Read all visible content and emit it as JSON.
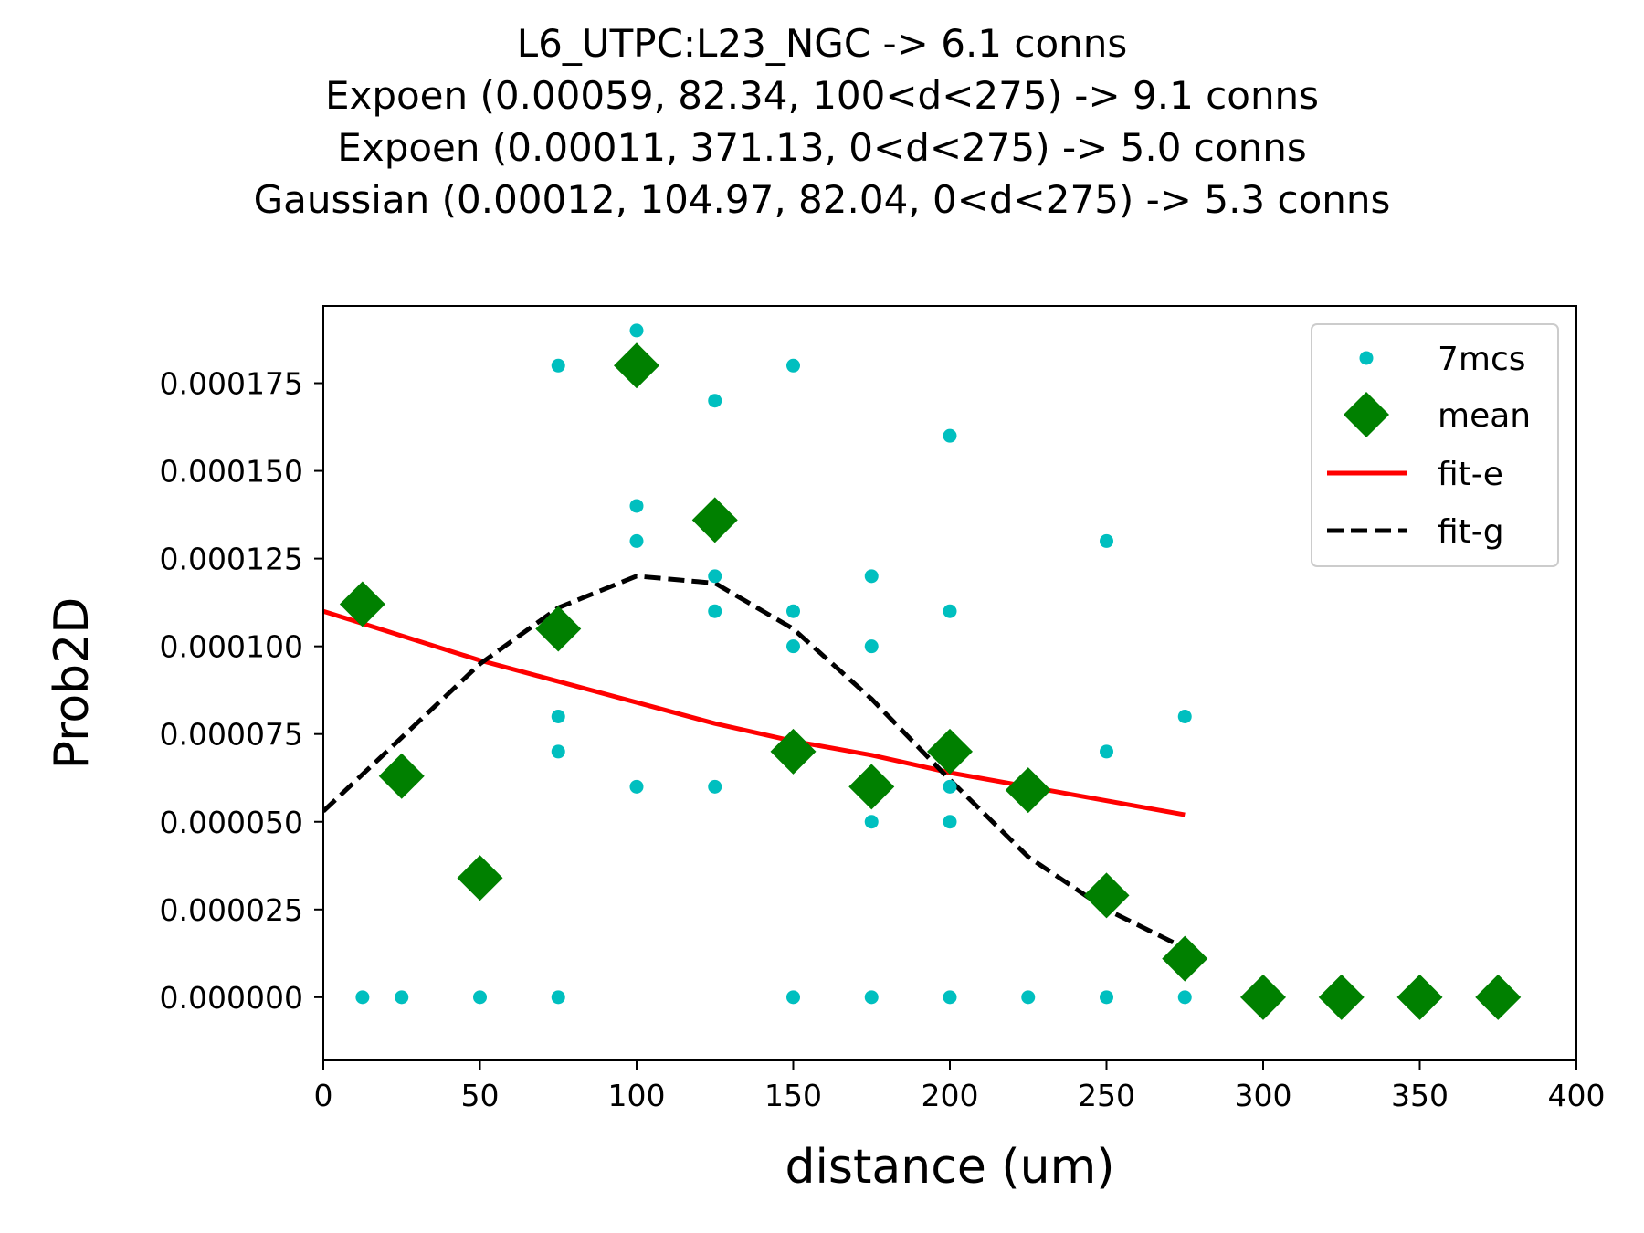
{
  "chart_data": {
    "type": "scatter",
    "title_lines": [
      "L6_UTPC:L23_NGC -> 6.1 conns",
      "Expoen (0.00059, 82.34, 100<d<275) -> 9.1 conns",
      "Expoen (0.00011, 371.13, 0<d<275) -> 5.0 conns",
      "Gaussian (0.00012, 104.97, 82.04, 0<d<275) -> 5.3 conns"
    ],
    "xlabel": "distance (um)",
    "ylabel": "Prob2D",
    "xlim": [
      0,
      400
    ],
    "ylim": [
      -1.8e-05,
      0.000197
    ],
    "xticks": [
      0,
      50,
      100,
      150,
      200,
      250,
      300,
      350,
      400
    ],
    "yticks": [
      0.0,
      2.5e-05,
      5e-05,
      7.5e-05,
      0.0001,
      0.000125,
      0.00015,
      0.000175
    ],
    "ytick_labels": [
      "0.000000",
      "0.000025",
      "0.000050",
      "0.000075",
      "0.000100",
      "0.000125",
      "0.000150",
      "0.000175"
    ],
    "grid": false,
    "legend_position": "top-right",
    "series": [
      {
        "name": "7mcs",
        "kind": "points",
        "marker": "circle",
        "color": "#00bfbf",
        "x": [
          12.5,
          25,
          50,
          75,
          75,
          75,
          75,
          100,
          100,
          100,
          100,
          125,
          125,
          125,
          125,
          150,
          150,
          150,
          150,
          175,
          175,
          175,
          175,
          200,
          200,
          200,
          200,
          200,
          225,
          250,
          250,
          250,
          275,
          275
        ],
        "y": [
          0,
          0,
          0,
          0.00018,
          8e-05,
          7e-05,
          0,
          0.00019,
          0.00014,
          0.00013,
          6e-05,
          0.00017,
          0.00012,
          0.00011,
          6e-05,
          0.00018,
          0.00011,
          0.0001,
          0,
          0.00012,
          0.0001,
          5e-05,
          0,
          0.00016,
          0.00011,
          6e-05,
          5e-05,
          0,
          0,
          0.00013,
          7e-05,
          0,
          8e-05,
          0
        ]
      },
      {
        "name": "mean",
        "kind": "points",
        "marker": "diamond",
        "color": "#008000",
        "x": [
          12.5,
          25,
          50,
          75,
          100,
          125,
          150,
          175,
          200,
          225,
          250,
          275,
          300,
          325,
          350,
          375
        ],
        "y": [
          0.000112,
          6.3e-05,
          3.4e-05,
          0.000105,
          0.00018,
          0.000136,
          7e-05,
          6e-05,
          7e-05,
          5.9e-05,
          2.9e-05,
          1.1e-05,
          0,
          0,
          0,
          0
        ]
      },
      {
        "name": "fit-e",
        "kind": "line",
        "style": "solid",
        "color": "#ff0000",
        "x": [
          0,
          25,
          50,
          75,
          100,
          125,
          150,
          175,
          200,
          225,
          250,
          275
        ],
        "y": [
          0.00011,
          0.000103,
          9.6e-05,
          9e-05,
          8.4e-05,
          7.8e-05,
          7.3e-05,
          6.9e-05,
          6.4e-05,
          6e-05,
          5.6e-05,
          5.2e-05
        ]
      },
      {
        "name": "fit-g",
        "kind": "line",
        "style": "dashed",
        "color": "#000000",
        "x": [
          0,
          25,
          50,
          75,
          100,
          125,
          150,
          175,
          200,
          225,
          250,
          275
        ],
        "y": [
          5.3e-05,
          7.4e-05,
          9.5e-05,
          0.000111,
          0.00012,
          0.000118,
          0.000105,
          8.5e-05,
          6.2e-05,
          4e-05,
          2.5e-05,
          1.4e-05
        ]
      }
    ]
  }
}
